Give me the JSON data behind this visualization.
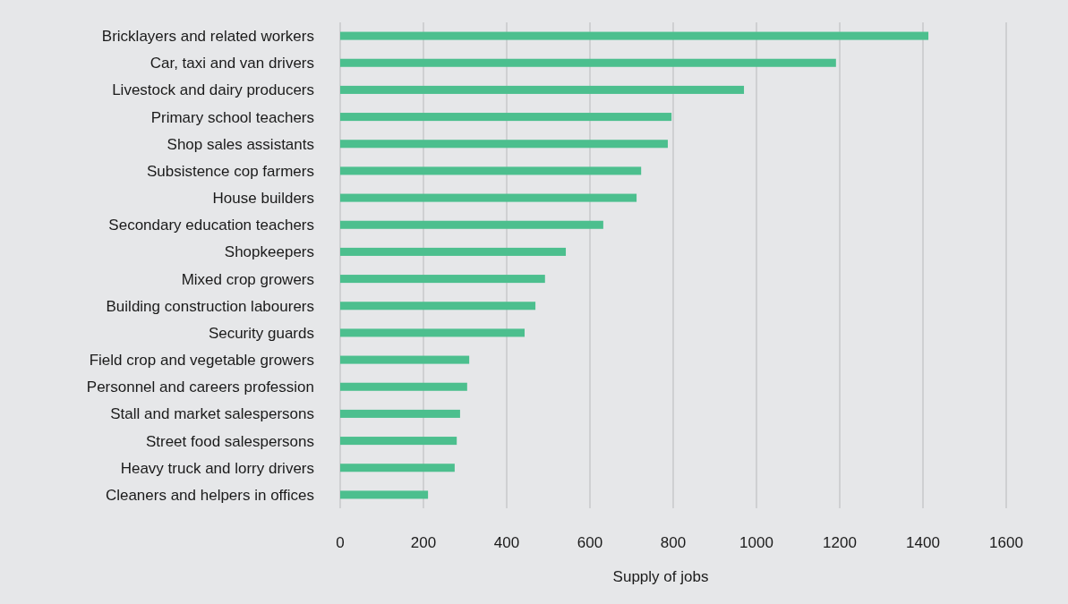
{
  "chart_data": {
    "type": "bar",
    "orientation": "horizontal",
    "xlabel": "Supply of jobs",
    "categories": [
      "Bricklayers and related workers",
      "Car, taxi and van drivers",
      "Livestock and dairy producers",
      "Primary school teachers",
      "Shop sales assistants",
      "Subsistence cop farmers",
      "House builders",
      "Secondary education teachers",
      "Shopkeepers",
      "Mixed crop growers",
      "Building construction labourers",
      "Security guards",
      "Field crop and vegetable growers",
      "Personnel and careers profession",
      "Stall and market salespersons",
      "Street food salespersons",
      "Heavy truck and lorry drivers",
      "Cleaners and helpers in offices"
    ],
    "values": [
      1413,
      1191,
      970,
      796,
      787,
      723,
      712,
      632,
      542,
      492,
      469,
      443,
      310,
      305,
      288,
      280,
      275,
      211
    ],
    "color": "#4cbf8e",
    "xlim": [
      0,
      1600
    ],
    "xticks": [
      0,
      200,
      400,
      600,
      800,
      1000,
      1200,
      1400,
      1600
    ],
    "grid": "x"
  }
}
